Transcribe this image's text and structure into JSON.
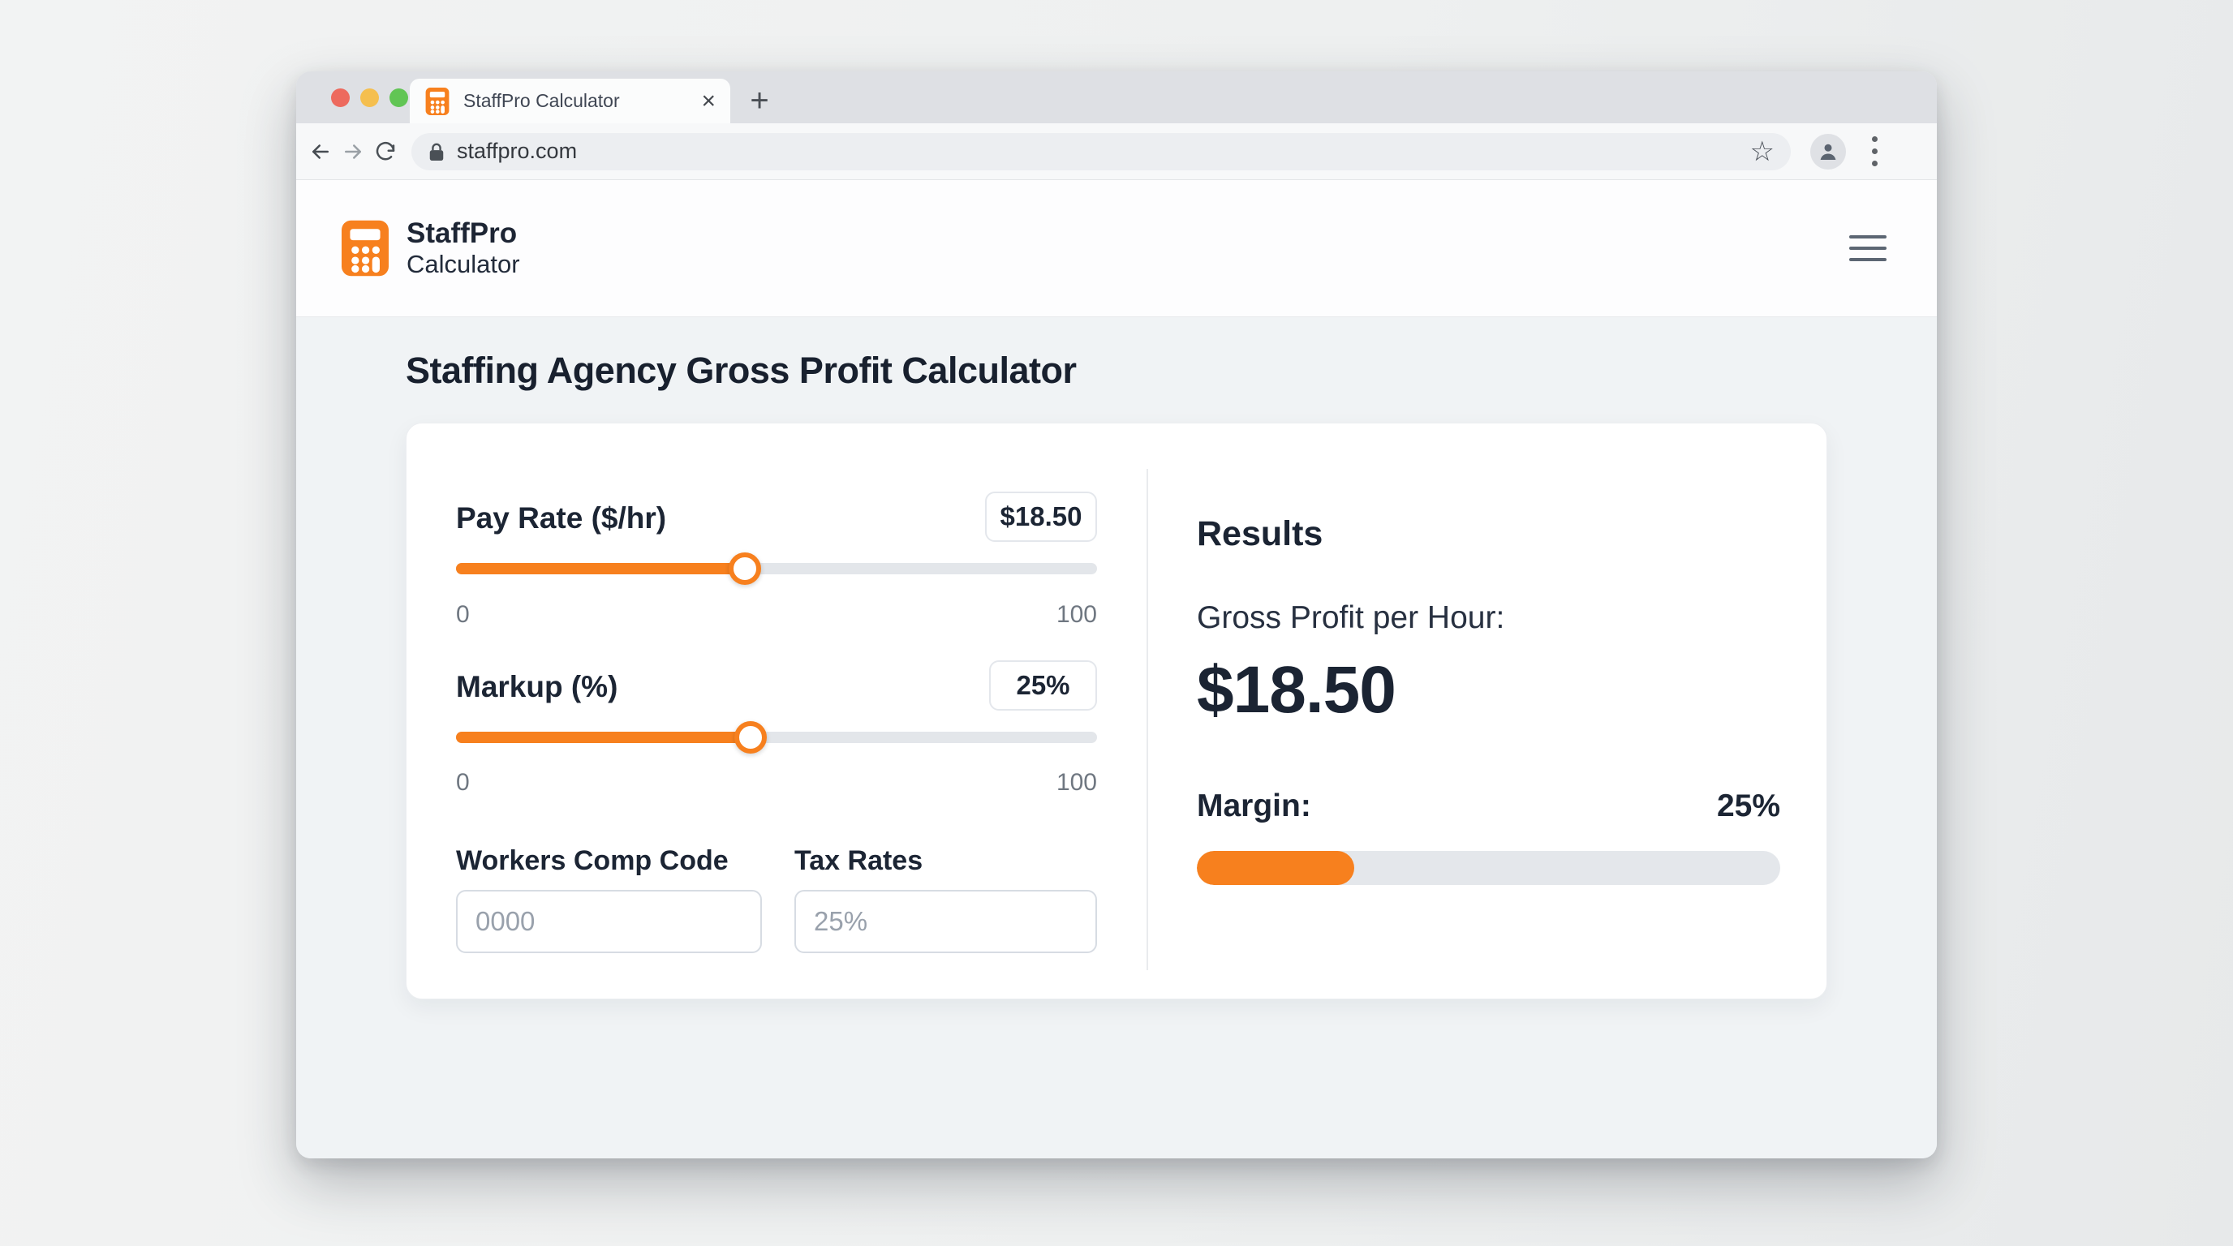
{
  "colors": {
    "accent_orange": "#F7801E",
    "navy_text": "#1C2534",
    "traffic_red": "#ED6A5E",
    "traffic_yellow": "#F5BF4F",
    "traffic_green": "#61C554"
  },
  "browser": {
    "tab_title": "StaffPro Calculator",
    "close_tab_glyph": "×",
    "new_tab_glyph": "+",
    "url": "staffpro.com",
    "bookmark_star_glyph": "☆"
  },
  "site_header": {
    "brand_line1": "StaffPro",
    "brand_line2": "Calculator"
  },
  "page": {
    "title": "Staffing Agency Gross Profit Calculator"
  },
  "calculator": {
    "pay_rate": {
      "label": "Pay Rate ($/hr)",
      "value": "$18.50",
      "min": "0",
      "max": "100",
      "slider_percent": 45
    },
    "markup": {
      "label": "Markup (%)",
      "value": "25%",
      "min": "0",
      "max": "100",
      "slider_percent": 46
    },
    "workers_comp": {
      "label": "Workers Comp Code",
      "placeholder": "0000"
    },
    "tax_rates": {
      "label": "Tax Rates",
      "placeholder": "25%"
    }
  },
  "results": {
    "heading": "Results",
    "gross_profit_label": "Gross Profit per Hour:",
    "gross_profit_value": "$18.50",
    "margin_label": "Margin:",
    "margin_value": "25%",
    "margin_bar_percent": 27
  }
}
